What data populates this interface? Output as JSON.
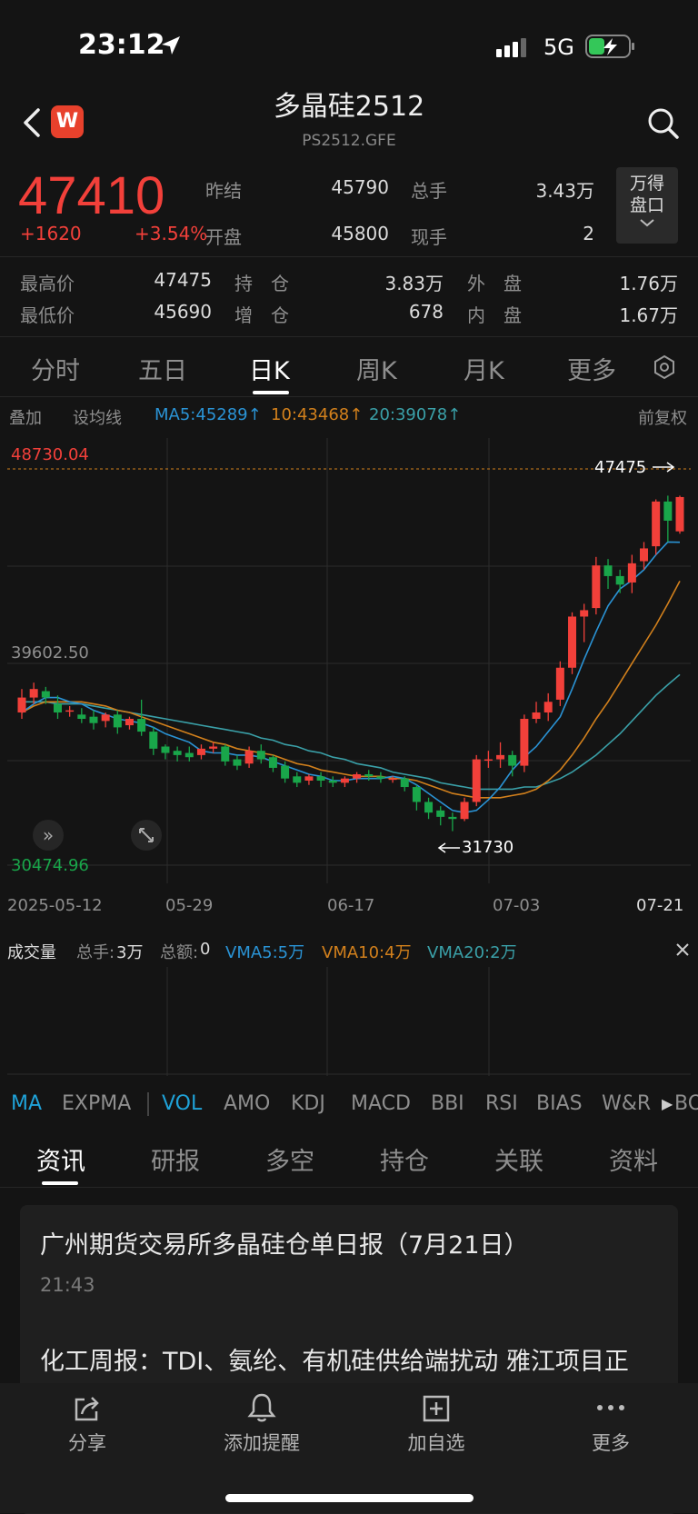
{
  "status": {
    "time": "23:12",
    "network": "5G"
  },
  "header": {
    "title": "多晶硅2512",
    "code": "PS2512.GFE"
  },
  "quote": {
    "price": "47410",
    "change": "+1620",
    "change_pct": "+3.54%",
    "prev_close_label": "昨结",
    "prev_close": "45790",
    "open_label": "开盘",
    "open": "45800",
    "volume_label": "总手",
    "volume": "3.43万",
    "cur_label": "现手",
    "cur": "2",
    "high_label": "最高价",
    "high": "47475",
    "low_label": "最低价",
    "low": "45690",
    "oi_label": "持　仓",
    "oi": "3.83万",
    "oi_chg_label": "增　仓",
    "oi_chg": "678",
    "outer_label": "外　盘",
    "outer": "1.76万",
    "inner_label": "内　盘",
    "inner": "1.67万",
    "panel_button": "万得\n盘口"
  },
  "tabs": [
    "分时",
    "五日",
    "日K",
    "周K",
    "月K",
    "更多"
  ],
  "ma_bar": {
    "overlay": "叠加",
    "set_ma": "设均线",
    "ma5": "MA5:45289↑",
    "ma10": "10:43468↑",
    "ma20": "20:39078↑",
    "adjust": "前复权"
  },
  "chart_data": {
    "type": "candlestick",
    "y_top_label": "48730.04",
    "y_mid_label": "39602.50",
    "y_bottom_label": "30474.96",
    "high_marker": "47475",
    "low_marker": "31730",
    "x_labels": [
      "2025-05-12",
      "05-29",
      "06-17",
      "07-03",
      "07-21"
    ],
    "ylim": [
      30474.96,
      48730.04
    ],
    "candles": [
      [
        37300,
        38000,
        38400,
        37000
      ],
      [
        38000,
        38400,
        38700,
        37700
      ],
      [
        38300,
        38000,
        38500,
        37700
      ],
      [
        37700,
        37300,
        38100,
        37000
      ],
      [
        37400,
        37400,
        37600,
        37100
      ],
      [
        37200,
        37000,
        37500,
        36800
      ],
      [
        37100,
        36800,
        37400,
        36500
      ],
      [
        36900,
        37200,
        37300,
        36600
      ],
      [
        37200,
        36600,
        37400,
        36300
      ],
      [
        36700,
        37000,
        37100,
        36500
      ],
      [
        37000,
        36400,
        37900,
        36200
      ],
      [
        36400,
        35600,
        36600,
        35300
      ],
      [
        35700,
        35400,
        35800,
        35100
      ],
      [
        35500,
        35300,
        35700,
        35000
      ],
      [
        35400,
        35200,
        35700,
        35000
      ],
      [
        35300,
        35600,
        35800,
        35100
      ],
      [
        35600,
        35700,
        35900,
        35400
      ],
      [
        35700,
        35000,
        35800,
        34800
      ],
      [
        35100,
        34800,
        35300,
        34600
      ],
      [
        34900,
        35500,
        35700,
        34700
      ],
      [
        35500,
        35100,
        35800,
        34900
      ],
      [
        35200,
        34700,
        35300,
        34500
      ],
      [
        34800,
        34200,
        35000,
        34000
      ],
      [
        34300,
        34000,
        34500,
        33800
      ],
      [
        34100,
        34300,
        34400,
        33900
      ],
      [
        34300,
        34100,
        34500,
        33800
      ],
      [
        34100,
        34000,
        34300,
        33800
      ],
      [
        34000,
        34200,
        34300,
        33800
      ],
      [
        34200,
        34400,
        34500,
        34000
      ],
      [
        34400,
        34300,
        34600,
        34100
      ],
      [
        34300,
        34200,
        34500,
        34000
      ],
      [
        34200,
        34200,
        34300,
        34000
      ],
      [
        34200,
        33800,
        34300,
        33600
      ],
      [
        33800,
        33100,
        33900,
        32700
      ],
      [
        33100,
        32600,
        33300,
        32300
      ],
      [
        32700,
        32400,
        32900,
        32000
      ],
      [
        32400,
        32300,
        32600,
        31730
      ],
      [
        32300,
        33100,
        33300,
        32200
      ],
      [
        33100,
        35100,
        35300,
        32900
      ],
      [
        35100,
        35100,
        35500,
        34700
      ],
      [
        35100,
        35300,
        35900,
        34700
      ],
      [
        35300,
        34800,
        35500,
        34300
      ],
      [
        34800,
        37000,
        37200,
        34500
      ],
      [
        37000,
        37300,
        37800,
        36800
      ],
      [
        37300,
        37800,
        38200,
        36900
      ],
      [
        37900,
        39400,
        39700,
        37600
      ],
      [
        39400,
        41800,
        42000,
        39100
      ],
      [
        41800,
        42100,
        42400,
        40600
      ],
      [
        42200,
        44200,
        44600,
        41900
      ],
      [
        44200,
        43700,
        44500,
        43100
      ],
      [
        43700,
        43300,
        44000,
        42900
      ],
      [
        43400,
        44300,
        44700,
        42900
      ],
      [
        44400,
        45000,
        45300,
        44000
      ],
      [
        45100,
        47200,
        47300,
        44700
      ],
      [
        47200,
        46300,
        47475,
        45300
      ],
      [
        45800,
        47410,
        47475,
        45690
      ]
    ],
    "ma5": [
      37300,
      37700,
      38000,
      38000,
      37800,
      37700,
      37400,
      37200,
      37000,
      36900,
      36800,
      36600,
      36300,
      36100,
      35900,
      35500,
      35400,
      35400,
      35300,
      35300,
      35200,
      35000,
      34800,
      34600,
      34400,
      34300,
      34100,
      34100,
      34200,
      34200,
      34200,
      34300,
      34200,
      33900,
      33500,
      33100,
      32700,
      32600,
      32700,
      33200,
      33800,
      34600,
      35200,
      35700,
      36400,
      37100,
      38400,
      39800,
      41100,
      42300,
      43100,
      43500,
      44000,
      44700,
      45300,
      45289
    ],
    "ma10": [
      37300,
      37600,
      37800,
      37800,
      37800,
      37800,
      37700,
      37600,
      37400,
      37300,
      37100,
      36900,
      36700,
      36500,
      36300,
      36100,
      35900,
      35800,
      35600,
      35500,
      35400,
      35300,
      35100,
      34900,
      34800,
      34600,
      34500,
      34400,
      34300,
      34300,
      34300,
      34200,
      34200,
      34100,
      33900,
      33700,
      33500,
      33400,
      33300,
      33300,
      33300,
      33400,
      33500,
      33700,
      34100,
      34600,
      35300,
      36100,
      37000,
      37800,
      38700,
      39600,
      40500,
      41400,
      42400,
      43468
    ],
    "ma20": [
      37800,
      37800,
      37800,
      37700,
      37700,
      37700,
      37600,
      37500,
      37400,
      37300,
      37200,
      37100,
      37000,
      36900,
      36800,
      36700,
      36600,
      36500,
      36400,
      36300,
      36100,
      36000,
      35800,
      35700,
      35500,
      35400,
      35200,
      35100,
      34900,
      34800,
      34700,
      34500,
      34400,
      34300,
      34200,
      34000,
      33900,
      33800,
      33700,
      33700,
      33700,
      33700,
      33800,
      33800,
      34000,
      34200,
      34500,
      34900,
      35300,
      35800,
      36300,
      36900,
      37500,
      38100,
      38600,
      39078
    ]
  },
  "volume_panel": {
    "title": "成交量",
    "total_label": "总手:",
    "total": "3万",
    "amount_label": "总额:",
    "amount": "0",
    "vma5": "VMA5:5万",
    "vma10": "VMA10:4万",
    "vma20": "VMA20:2万"
  },
  "indicators": [
    "MA",
    "EXPMA",
    "VOL",
    "AMO",
    "KDJ",
    "MACD",
    "BBI",
    "RSI",
    "BIAS",
    "W&R",
    "BO"
  ],
  "news_tabs": [
    "资讯",
    "研报",
    "多空",
    "持仓",
    "关联",
    "资料"
  ],
  "news": [
    {
      "title": "广州期货交易所多晶硅仓单日报（7月21日）",
      "time": "21:43"
    },
    {
      "title": "化工周报：TDI、氨纶、有机硅供给端扰动 雅江项目正"
    }
  ],
  "bottom_bar": {
    "share": "分享",
    "alert": "添加提醒",
    "watch": "加自选",
    "more": "更多"
  },
  "colors": {
    "up": "#f2403a",
    "down": "#19a64a",
    "ma5": "#2a93d5",
    "ma10": "#d2801c",
    "ma20": "#3aa0a8"
  }
}
